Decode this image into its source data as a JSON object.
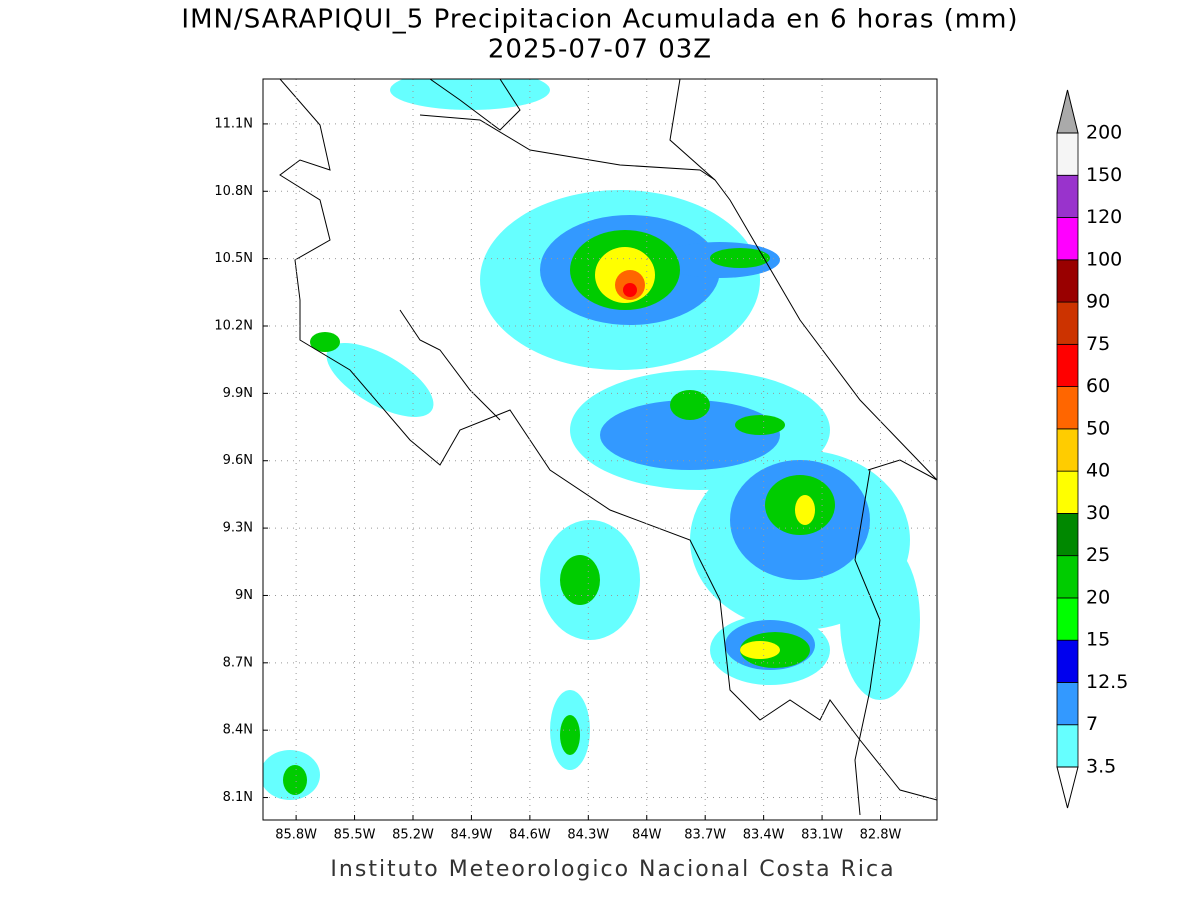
{
  "map": {
    "title": "IMN/SARAPIQUI_5 Precipitacion Acumulada en 6 horas (mm)",
    "subtitle": "2025-07-07 03Z",
    "footer": "Instituto Meteorologico Nacional Costa Rica",
    "lonlim": [
      -85.97,
      -82.51
    ],
    "latlim": [
      8.0,
      11.3
    ],
    "lon_ticks": [
      {
        "value": -85.8,
        "label": "85.8W"
      },
      {
        "value": -85.5,
        "label": "85.5W"
      },
      {
        "value": -85.2,
        "label": "85.2W"
      },
      {
        "value": -84.9,
        "label": "84.9W"
      },
      {
        "value": -84.6,
        "label": "84.6W"
      },
      {
        "value": -84.3,
        "label": "84.3W"
      },
      {
        "value": -84.0,
        "label": "84W"
      },
      {
        "value": -83.7,
        "label": "83.7W"
      },
      {
        "value": -83.4,
        "label": "83.4W"
      },
      {
        "value": -83.1,
        "label": "83.1W"
      },
      {
        "value": -82.8,
        "label": "82.8W"
      }
    ],
    "lat_ticks": [
      {
        "value": 8.1,
        "label": "8.1N"
      },
      {
        "value": 8.4,
        "label": "8.4N"
      },
      {
        "value": 8.7,
        "label": "8.7N"
      },
      {
        "value": 9.0,
        "label": "9N"
      },
      {
        "value": 9.3,
        "label": "9.3N"
      },
      {
        "value": 9.6,
        "label": "9.6N"
      },
      {
        "value": 9.9,
        "label": "9.9N"
      },
      {
        "value": 10.2,
        "label": "10.2N"
      },
      {
        "value": 10.5,
        "label": "10.5N"
      },
      {
        "value": 10.8,
        "label": "10.8N"
      },
      {
        "value": 11.1,
        "label": "11.1N"
      }
    ],
    "grid": true,
    "colorbar": {
      "levels": [
        3.5,
        7,
        12.5,
        15,
        20,
        25,
        30,
        40,
        50,
        60,
        75,
        90,
        100,
        120,
        150,
        200
      ],
      "colors": [
        "#66ffff",
        "#3399ff",
        "#0000ee",
        "#00ff00",
        "#00cc00",
        "#008800",
        "#ffff00",
        "#ffcc00",
        "#ff6600",
        "#ff0000",
        "#cc3300",
        "#990000",
        "#ff00ff",
        "#9933cc",
        "#f5f5f5"
      ],
      "over_color": "#aaaaaa",
      "under_color": "#ffffff"
    }
  }
}
